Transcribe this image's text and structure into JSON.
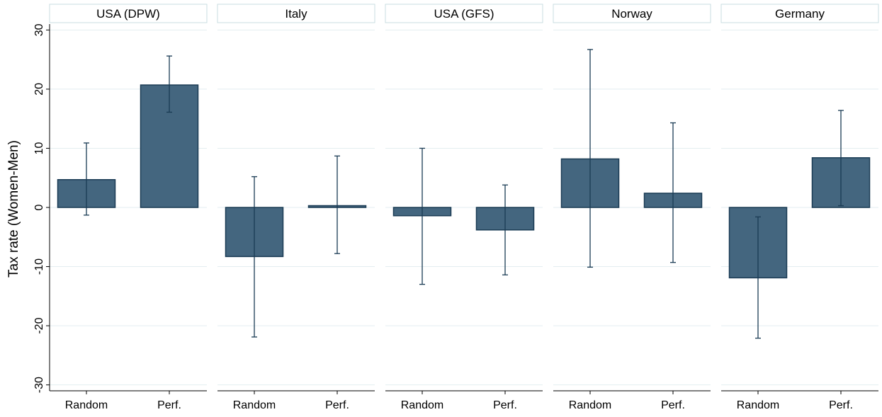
{
  "chart_data": {
    "type": "bar",
    "ylabel": "Tax rate (Women-Men)",
    "ylim": [
      -31,
      31
    ],
    "yticks": [
      30,
      20,
      10,
      0,
      -10,
      -20,
      -30
    ],
    "grid": true,
    "bar_color": "#44667f",
    "bar_edge_color": "#1a3b54",
    "categories": [
      "Random",
      "Perf."
    ],
    "panels": [
      {
        "name": "USA (DPW)",
        "values": [
          4.7,
          20.7
        ],
        "ci_low": [
          -1.3,
          16.1
        ],
        "ci_high": [
          10.9,
          25.6
        ]
      },
      {
        "name": "Italy",
        "values": [
          -8.3,
          0.3
        ],
        "ci_low": [
          -21.9,
          -7.8
        ],
        "ci_high": [
          5.2,
          8.7
        ]
      },
      {
        "name": "USA (GFS)",
        "values": [
          -1.4,
          -3.8
        ],
        "ci_low": [
          -13.0,
          -11.4
        ],
        "ci_high": [
          10.0,
          3.8
        ]
      },
      {
        "name": "Norway",
        "values": [
          8.2,
          2.4
        ],
        "ci_low": [
          -10.1,
          -9.3
        ],
        "ci_high": [
          26.7,
          14.3
        ]
      },
      {
        "name": "Germany",
        "values": [
          -11.9,
          8.4
        ],
        "ci_low": [
          -22.1,
          0.3
        ],
        "ci_high": [
          -1.6,
          16.4
        ]
      }
    ]
  }
}
